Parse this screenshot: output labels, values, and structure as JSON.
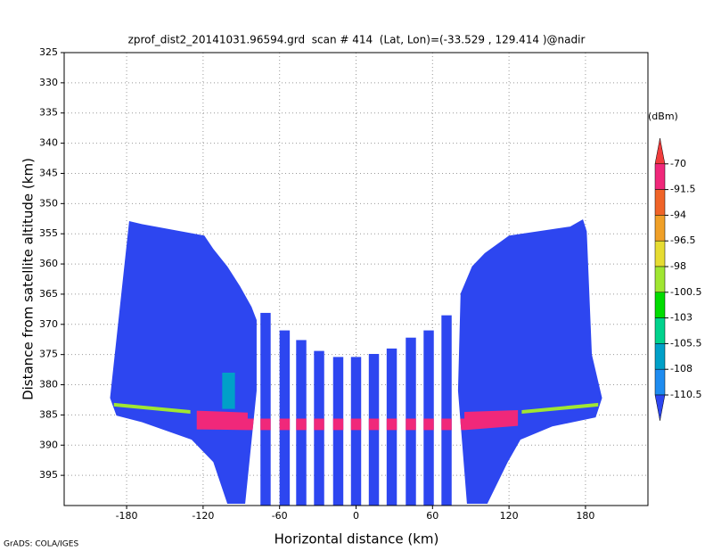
{
  "chart_data": {
    "type": "profile",
    "title": "zprof_dist2_20141031.96594.grd  scan # 414  (Lat, Lon)=(-33.529 , 129.414 )@nadir",
    "x_label": "Horizontal distance (km)",
    "y_label": "Distance from satellite altitude (km)",
    "xlim": [
      -229,
      229
    ],
    "ylim": [
      325,
      400
    ],
    "xticks": [
      -180,
      -120,
      -60,
      0,
      60,
      120,
      180
    ],
    "yticks": [
      325,
      330,
      335,
      340,
      345,
      350,
      355,
      360,
      365,
      370,
      375,
      380,
      385,
      390,
      395
    ],
    "grid": true,
    "colorbar": {
      "unit": "(dBm)",
      "levels": [
        -70,
        -91.5,
        -94,
        -96.5,
        -98,
        -100.5,
        -103,
        -105.5,
        -108,
        -110.5
      ],
      "colors": [
        "#f03c3c",
        "#f0287a",
        "#f06428",
        "#f0a028",
        "#e6dc32",
        "#a0e632",
        "#00dc00",
        "#00d28c",
        "#00a0c8",
        "#1e8cf0",
        "#2d46f0"
      ]
    },
    "footprint": [
      {
        "value": -111,
        "x": [
          -193,
          -178,
          -168,
          -119,
          -112,
          -101,
          -91,
          -82,
          -78,
          -78,
          -87,
          -101,
          -112,
          -129,
          -168,
          -188
        ],
        "y": [
          382.2,
          352.9,
          353.4,
          355.3,
          357.5,
          360.4,
          363.7,
          367.1,
          369.3,
          381,
          399.7,
          399.7,
          392.8,
          389.1,
          386.2,
          385.1
        ]
      },
      {
        "value": -111,
        "x": [
          82,
          91,
          101,
          120,
          168,
          178,
          181,
          185,
          193,
          188,
          154,
          129,
          119,
          103,
          87,
          80
        ],
        "y": [
          364.9,
          360.4,
          358.2,
          355.3,
          353.8,
          352.6,
          354.6,
          375,
          382.2,
          385.4,
          386.9,
          389.1,
          392.8,
          399.7,
          399.7,
          381
        ]
      }
    ],
    "beams": {
      "value": -111,
      "width": 8,
      "x": [
        -71,
        -56,
        -43,
        -29,
        -14,
        0,
        14,
        28,
        43,
        57,
        71
      ],
      "top": [
        368.1,
        371,
        372.6,
        374.4,
        375.4,
        375.4,
        374.9,
        374,
        372.2,
        371,
        368.5
      ]
    },
    "overlays": [
      {
        "value": -106,
        "x": [
          -105,
          -95,
          -95,
          -105
        ],
        "y": [
          378,
          378,
          384,
          384
        ]
      },
      {
        "value": -99,
        "x": [
          -190,
          -130,
          -130,
          -190
        ],
        "y": [
          383,
          384.2,
          384.8,
          383.6
        ]
      },
      {
        "value": -99,
        "x": [
          130,
          190,
          190,
          130
        ],
        "y": [
          384.2,
          383,
          383.6,
          384.8
        ]
      },
      {
        "value": -80,
        "x": [
          -125,
          -85,
          -85,
          85,
          85,
          127,
          127,
          85,
          -85,
          -125
        ],
        "y": [
          384.3,
          384.6,
          385.6,
          385.6,
          384.5,
          384.2,
          386.8,
          387.5,
          387.5,
          387.4
        ]
      }
    ],
    "footer": "GrADS: COLA/IGES"
  }
}
